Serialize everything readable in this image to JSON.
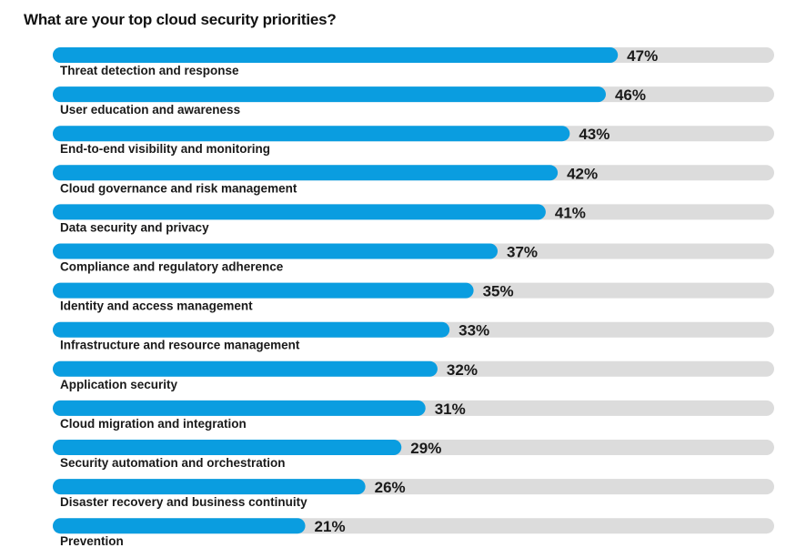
{
  "chart_data": {
    "type": "bar",
    "orientation": "horizontal",
    "title": "What are your top cloud security priorities?",
    "categories": [
      "Threat detection and response",
      "User education and awareness",
      "End-to-end visibility and monitoring",
      "Cloud governance and risk management",
      "Data security and privacy",
      "Compliance and regulatory adherence",
      "Identity and access management",
      "Infrastructure and resource management",
      "Application security",
      "Cloud migration and integration",
      "Security automation and orchestration",
      "Disaster recovery and business continuity",
      "Prevention"
    ],
    "values": [
      47,
      46,
      43,
      42,
      41,
      37,
      35,
      33,
      32,
      31,
      29,
      26,
      21
    ],
    "value_labels": [
      "47%",
      "46%",
      "43%",
      "42%",
      "41%",
      "37%",
      "35%",
      "33%",
      "32%",
      "31%",
      "29%",
      "26%",
      "21%"
    ],
    "xlim": [
      0,
      60
    ],
    "grid": false,
    "colors": {
      "bar": "#0a9de0",
      "track": "#dcdcdc"
    }
  }
}
